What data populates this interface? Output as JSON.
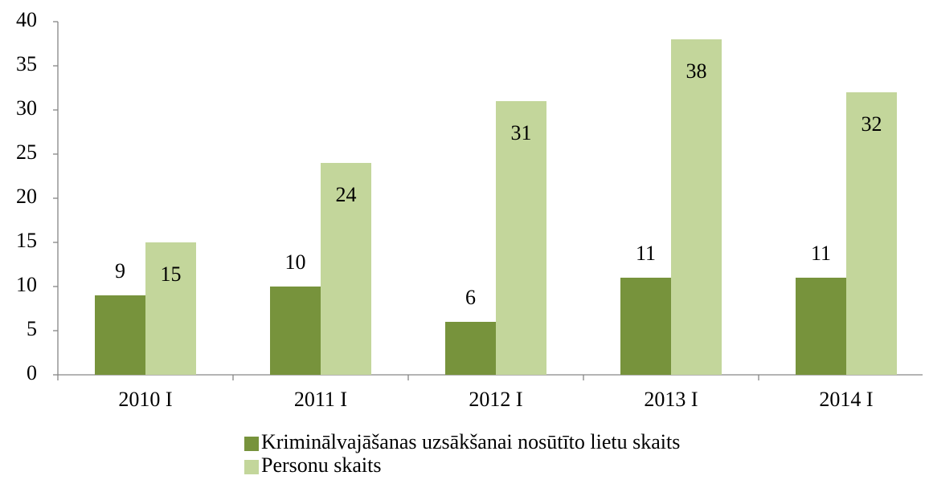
{
  "chart_data": {
    "type": "bar",
    "categories": [
      "2010 I",
      "2011 I",
      "2012 I",
      "2013 I",
      "2014 I"
    ],
    "series": [
      {
        "name": "Kriminālvajāšanas uzsākšanai nosūtīto lietu skaits",
        "color": "#77933c",
        "values": [
          9,
          10,
          6,
          11,
          11
        ]
      },
      {
        "name": "Personu skaits",
        "color": "#c3d69b",
        "values": [
          15,
          24,
          31,
          38,
          32
        ]
      }
    ],
    "ylim": [
      0,
      40
    ],
    "yticks": [
      0,
      5,
      10,
      15,
      20,
      25,
      30,
      35,
      40
    ],
    "legend": "bottom"
  }
}
